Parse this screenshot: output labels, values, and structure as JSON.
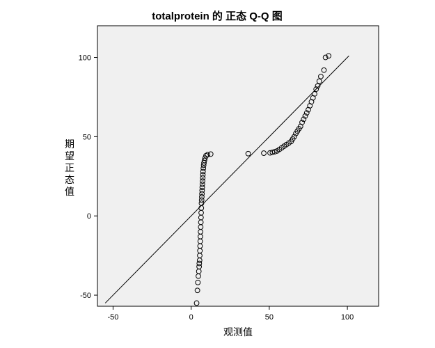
{
  "chart_data": {
    "type": "scatter",
    "title": "totalprotein 的 正态 Q-Q 图",
    "xlabel": "观测值",
    "ylabel": "期望正态值",
    "xlim": [
      -60,
      120
    ],
    "ylim": [
      -57,
      120
    ],
    "xticks": [
      -50,
      0,
      50,
      100
    ],
    "yticks": [
      -50,
      0,
      50,
      100
    ],
    "xtick_labels": [
      "-50",
      "0",
      "50",
      "100"
    ],
    "ytick_labels": [
      "-50",
      "0",
      "50",
      "100"
    ],
    "grid": false,
    "reference_line": {
      "x": [
        -55,
        101
      ],
      "y": [
        -55,
        101
      ]
    },
    "series": [
      {
        "x": [
          3.5,
          4,
          4.3,
          4.6,
          4.9,
          5.1,
          5.2,
          5.4,
          5.5,
          5.6,
          5.7,
          5.8,
          5.9,
          6,
          6.1,
          6.2,
          6.3,
          6.4,
          6.5,
          6.6,
          6.7,
          6.8,
          6.9,
          7,
          7.1,
          7.2,
          7.3,
          7.4,
          7.5,
          7.6,
          7.8,
          8,
          8.2,
          8.5,
          8.9,
          9.5,
          10.5,
          12.5,
          36.5,
          46.5,
          50.5,
          52,
          53.5,
          55,
          56.5,
          58,
          59.5,
          61,
          62.5,
          64,
          65,
          66,
          67,
          68,
          69,
          70,
          71,
          72,
          73,
          74,
          75,
          76,
          77,
          78,
          79,
          80,
          81,
          82,
          83,
          85,
          86,
          88
        ],
        "y": [
          -55,
          -47,
          -42,
          -38,
          -35,
          -32,
          -30,
          -28,
          -25,
          -22,
          -19,
          -16,
          -13,
          -10,
          -7,
          -4,
          -1,
          2,
          5,
          8,
          10,
          12,
          14,
          16,
          18,
          20,
          22,
          24,
          26,
          28,
          30,
          32,
          33.5,
          35,
          36.5,
          38,
          38.6,
          39,
          39.3,
          39.6,
          39.8,
          40.1,
          40.5,
          41,
          42,
          43,
          44,
          45,
          46,
          47,
          48.5,
          50,
          52,
          53.5,
          55,
          56.5,
          59,
          61,
          63,
          65,
          67,
          69.5,
          72,
          74.5,
          77,
          80,
          82,
          85,
          88,
          92,
          100,
          101
        ]
      }
    ]
  }
}
